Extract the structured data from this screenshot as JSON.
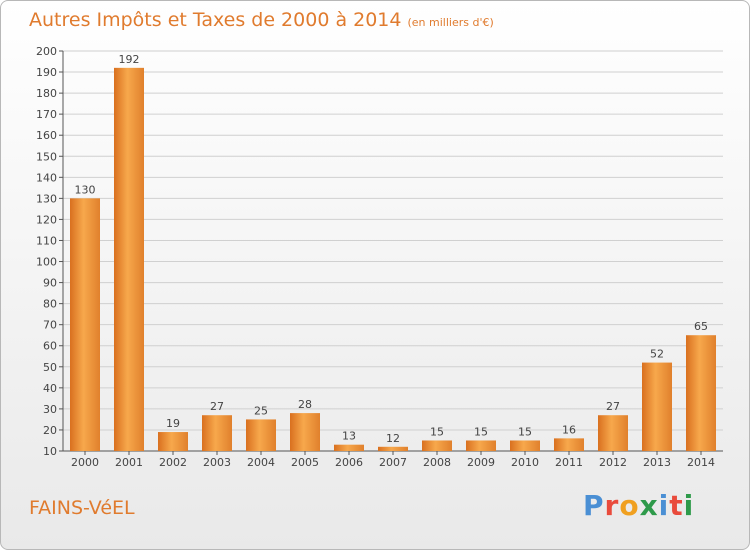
{
  "header": {
    "title": "Autres Impôts et Taxes de 2000 à 2014",
    "unit": "(en milliers d'€)"
  },
  "footer": {
    "place": "FAINS-VéEL",
    "logo": "Proxiti"
  },
  "colors": {
    "accent": "#e07b2e",
    "bar_light": "#f7a84c",
    "bar_dark": "#d96f1f",
    "grid": "#d0d0d0",
    "axis": "#555555"
  },
  "chart_data": {
    "type": "bar",
    "categories": [
      "2000",
      "2001",
      "2002",
      "2003",
      "2004",
      "2005",
      "2006",
      "2007",
      "2008",
      "2009",
      "2010",
      "2011",
      "2012",
      "2013",
      "2014"
    ],
    "values": [
      130,
      192,
      19,
      27,
      25,
      28,
      13,
      12,
      15,
      15,
      15,
      16,
      27,
      52,
      65
    ],
    "title": "Autres Impôts et Taxes de 2000 à 2014",
    "subtitle": "(en milliers d'€)",
    "ylim": [
      10,
      200
    ],
    "yticks": [
      10,
      20,
      30,
      40,
      50,
      60,
      70,
      80,
      90,
      100,
      110,
      120,
      130,
      140,
      150,
      160,
      170,
      180,
      190,
      200
    ],
    "grid": true,
    "legend": "none"
  }
}
